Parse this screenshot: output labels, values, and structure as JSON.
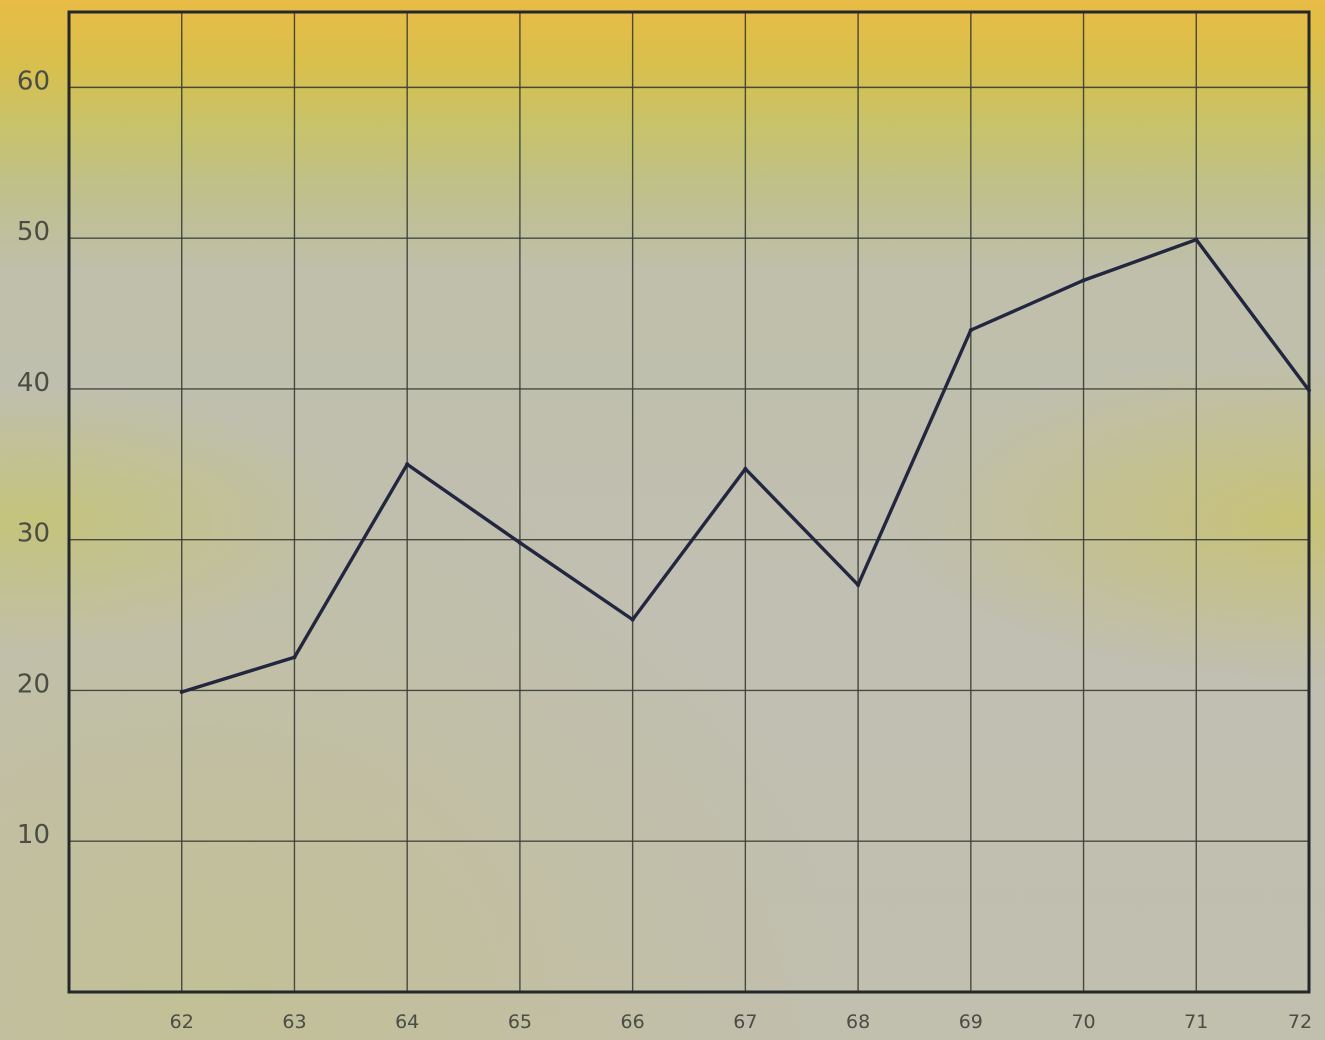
{
  "chart_data": {
    "type": "line",
    "title": "",
    "xlabel": "",
    "ylabel": "",
    "x": [
      62,
      63,
      64,
      65,
      66,
      67,
      68,
      69,
      70,
      71,
      72
    ],
    "xlim": [
      61,
      72
    ],
    "ylim": [
      0,
      65
    ],
    "x_tick_labels": [
      "62",
      "63",
      "64",
      "65",
      "66",
      "67",
      "68",
      "69",
      "70",
      "71",
      "72"
    ],
    "y_tick_labels": [
      "10",
      "20",
      "30",
      "40",
      "50",
      "60"
    ],
    "y_ticks": [
      10,
      20,
      30,
      40,
      50,
      60
    ],
    "grid": true,
    "series": [
      {
        "values": [
          19.9,
          22.2,
          35.0,
          29.8,
          24.7,
          34.7,
          27.0,
          43.9,
          47.2,
          49.9,
          39.9
        ],
        "color": "#23263f"
      }
    ],
    "colors": {
      "background_top": "#e8bc45",
      "background_main": "#c0bfb2",
      "grid": "#3a3d34",
      "line": "#23263f"
    }
  }
}
